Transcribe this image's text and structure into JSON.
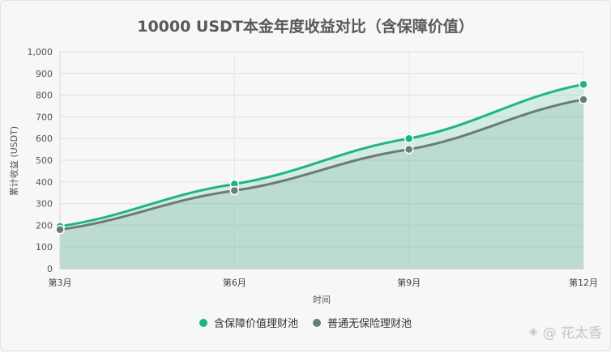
{
  "chart_data": {
    "type": "area",
    "title": "10000 USDT本金年度收益对比（含保障价值）",
    "xlabel": "时间",
    "ylabel": "累计收益 (USDT)",
    "categories": [
      "第3月",
      "第6月",
      "第9月",
      "第12月"
    ],
    "ylim": [
      0,
      1000
    ],
    "yticks": [
      "0",
      "100",
      "200",
      "300",
      "400",
      "500",
      "600",
      "700",
      "800",
      "900",
      "1,000"
    ],
    "grid": true,
    "legend_position": "bottom",
    "series": [
      {
        "name": "含保障价值理财池",
        "values": [
          195,
          390,
          600,
          850
        ],
        "color": "#1db584"
      },
      {
        "name": "普通无保险理财池",
        "values": [
          180,
          360,
          550,
          780
        ],
        "color": "#6b7a7a"
      }
    ]
  },
  "watermark": {
    "text": "@ 花太香",
    "icon": "diamond-logo-icon"
  }
}
